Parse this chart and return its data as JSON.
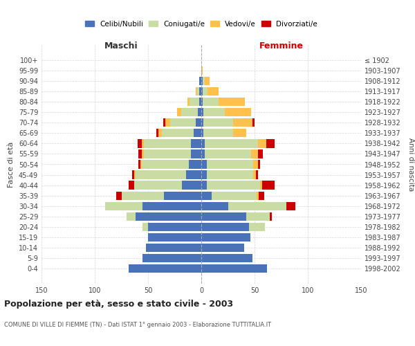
{
  "age_groups": [
    "100+",
    "95-99",
    "90-94",
    "85-89",
    "80-84",
    "75-79",
    "70-74",
    "65-69",
    "60-64",
    "55-59",
    "50-54",
    "45-49",
    "40-44",
    "35-39",
    "30-34",
    "25-29",
    "20-24",
    "15-19",
    "10-14",
    "5-9",
    "0-4"
  ],
  "birth_years": [
    "≤ 1902",
    "1903-1907",
    "1908-1912",
    "1913-1917",
    "1918-1922",
    "1923-1927",
    "1928-1932",
    "1933-1937",
    "1938-1942",
    "1943-1947",
    "1948-1952",
    "1953-1957",
    "1958-1962",
    "1963-1967",
    "1968-1972",
    "1973-1977",
    "1978-1982",
    "1983-1987",
    "1988-1992",
    "1993-1997",
    "1998-2002"
  ],
  "colors": {
    "celibe": "#4a72b8",
    "coniugato": "#c8dca4",
    "vedovo": "#ffc04c",
    "divorziato": "#cc0000"
  },
  "maschi": {
    "celibe": [
      0,
      0,
      2,
      2,
      2,
      3,
      5,
      7,
      10,
      10,
      12,
      14,
      18,
      35,
      55,
      62,
      50,
      50,
      52,
      55,
      68
    ],
    "coniugato": [
      0,
      0,
      0,
      2,
      9,
      16,
      24,
      30,
      44,
      44,
      44,
      48,
      45,
      40,
      35,
      8,
      5,
      0,
      0,
      0,
      0
    ],
    "vedovo": [
      0,
      0,
      0,
      1,
      2,
      4,
      5,
      3,
      2,
      2,
      1,
      1,
      0,
      0,
      0,
      0,
      0,
      0,
      0,
      0,
      0
    ],
    "divorziato": [
      0,
      0,
      0,
      0,
      0,
      0,
      2,
      2,
      4,
      3,
      2,
      2,
      5,
      5,
      0,
      0,
      0,
      0,
      0,
      0,
      0
    ]
  },
  "femmine": {
    "nubile": [
      0,
      0,
      1,
      1,
      1,
      2,
      2,
      2,
      3,
      3,
      5,
      5,
      5,
      10,
      25,
      42,
      45,
      46,
      40,
      48,
      62
    ],
    "coniugata": [
      0,
      0,
      2,
      5,
      15,
      20,
      28,
      28,
      50,
      44,
      44,
      44,
      50,
      42,
      55,
      22,
      15,
      0,
      0,
      0,
      0
    ],
    "vedova": [
      0,
      1,
      5,
      10,
      25,
      25,
      18,
      12,
      8,
      6,
      4,
      2,
      2,
      2,
      0,
      0,
      0,
      0,
      0,
      0,
      0
    ],
    "divorziata": [
      0,
      0,
      0,
      0,
      0,
      0,
      2,
      0,
      8,
      5,
      2,
      2,
      12,
      5,
      8,
      2,
      0,
      0,
      0,
      0,
      0
    ]
  },
  "xlim": 150,
  "title": "Popolazione per età, sesso e stato civile - 2003",
  "subtitle": "COMUNE DI VILLE DI FIEMME (TN) - Dati ISTAT 1° gennaio 2003 - Elaborazione TUTTITALIA.IT",
  "xlabel_left": "Maschi",
  "xlabel_right": "Femmine",
  "ylabel_left": "Fasce di età",
  "ylabel_right": "Anni di nascita",
  "legend_labels": [
    "Celibi/Nubili",
    "Coniugati/e",
    "Vedovi/e",
    "Divorziati/e"
  ],
  "bg_color": "#ffffff",
  "grid_color": "#cccccc"
}
